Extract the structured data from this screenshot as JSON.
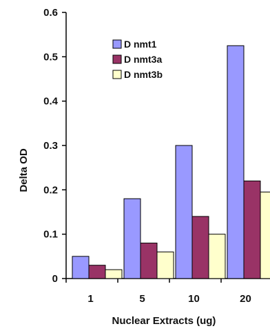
{
  "chart_data": {
    "type": "bar",
    "categories": [
      "1",
      "5",
      "10",
      "20"
    ],
    "series": [
      {
        "name": "D nmt1",
        "color": "#9999FF",
        "values": [
          0.05,
          0.18,
          0.3,
          0.525
        ]
      },
      {
        "name": "D nmt3a",
        "color": "#993366",
        "values": [
          0.03,
          0.08,
          0.14,
          0.22
        ]
      },
      {
        "name": "D nmt3b",
        "color": "#FFFFCC",
        "values": [
          0.02,
          0.06,
          0.1,
          0.195
        ]
      }
    ],
    "title": "",
    "xlabel": "Nuclear Extracts (ug)",
    "ylabel": "Delta OD",
    "ylim": [
      0,
      0.6
    ],
    "yticks": [
      "0",
      "0.1",
      "0.2",
      "0.3",
      "0.4",
      "0.5",
      "0.6"
    ],
    "legend_position": "top-left-inside",
    "grid": false
  }
}
